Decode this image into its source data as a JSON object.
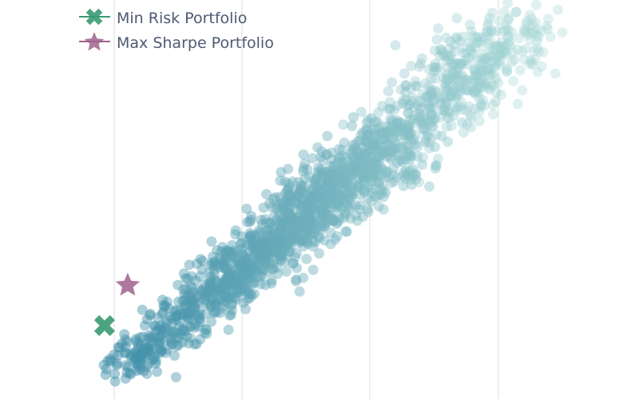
{
  "chart_data": {
    "type": "scatter",
    "title": "",
    "xlabel": "",
    "ylabel": "",
    "xlim": [
      0.0,
      2.0
    ],
    "ylim": [
      0.0,
      1.0
    ],
    "grid": {
      "x": true,
      "y": false
    },
    "legend_position": "top-left",
    "series": [
      {
        "name": "Min Risk Portfolio",
        "marker": "x",
        "color": "#3a9a72",
        "points": [
          [
            -0.05,
            0.1
          ]
        ]
      },
      {
        "name": "Max Sharpe Portfolio",
        "marker": "star",
        "color": "#a0608e",
        "points": [
          [
            0.07,
            0.22
          ]
        ]
      }
    ],
    "cloud": {
      "color_low": "#3f8ea8",
      "color_high": "#a8d8d6",
      "point_count": 1800,
      "trend": "points rise from the lower left near the minimum-risk corner to the upper right"
    }
  }
}
